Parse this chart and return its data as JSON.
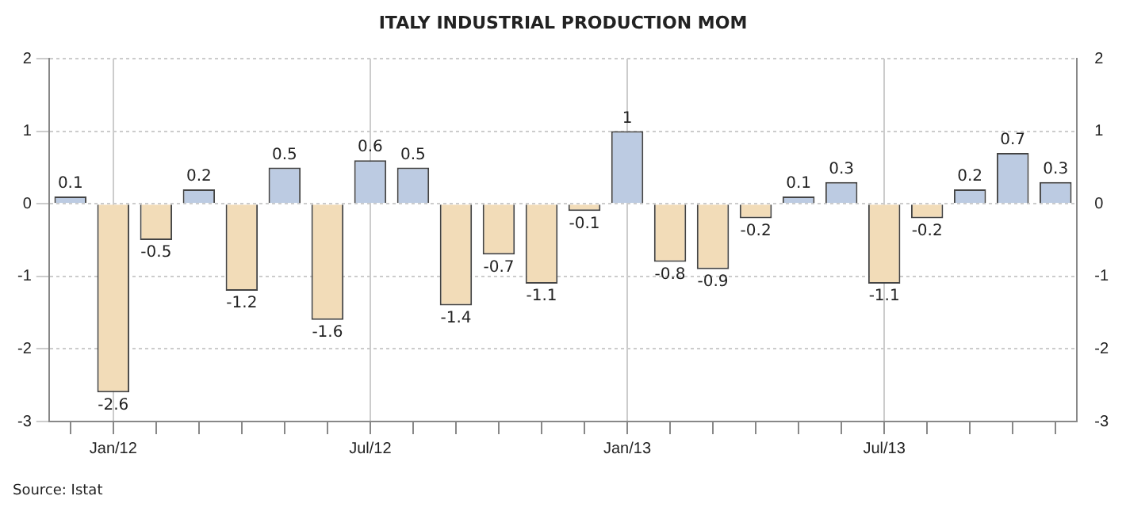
{
  "chart_data": {
    "type": "bar",
    "title": "ITALY INDUSTRIAL PRODUCTION MOM",
    "categories": [
      null,
      "Jan/12",
      null,
      null,
      null,
      null,
      null,
      "Jul/12",
      null,
      null,
      null,
      null,
      null,
      "Jan/13",
      null,
      null,
      null,
      null,
      null,
      "Jul/13",
      null,
      null,
      null,
      null
    ],
    "values": [
      0.1,
      -2.6,
      -0.5,
      0.2,
      -1.2,
      0.5,
      -1.6,
      0.6,
      0.5,
      -1.4,
      -0.7,
      -1.1,
      -0.1,
      1,
      -0.8,
      -0.9,
      -0.2,
      0.1,
      0.3,
      -1.1,
      -0.2,
      0.2,
      0.7,
      0.3
    ],
    "colors": [
      "#bccbe2",
      "#f2dcb8",
      "#f2dcb8",
      "#bccbe2",
      "#f2dcb8",
      "#bccbe2",
      "#f2dcb8",
      "#bccbe2",
      "#bccbe2",
      "#f2dcb8",
      "#f2dcb8",
      "#f2dcb8",
      "#f2dcb8",
      "#bccbe2",
      "#f2dcb8",
      "#f2dcb8",
      "#f2dcb8",
      "#bccbe2",
      "#bccbe2",
      "#f2dcb8",
      "#f2dcb8",
      "#bccbe2",
      "#bccbe2",
      "#bccbe2"
    ],
    "ylim": [
      -3,
      2
    ],
    "yticks": [
      -3,
      -2,
      -1,
      0,
      1,
      2
    ],
    "y2lim": [
      -3,
      2
    ],
    "y2ticks": [
      -3,
      -2,
      -1,
      0,
      1,
      2
    ],
    "grid": true,
    "data_labels": true,
    "annotations": [
      "Source: Istat"
    ]
  }
}
